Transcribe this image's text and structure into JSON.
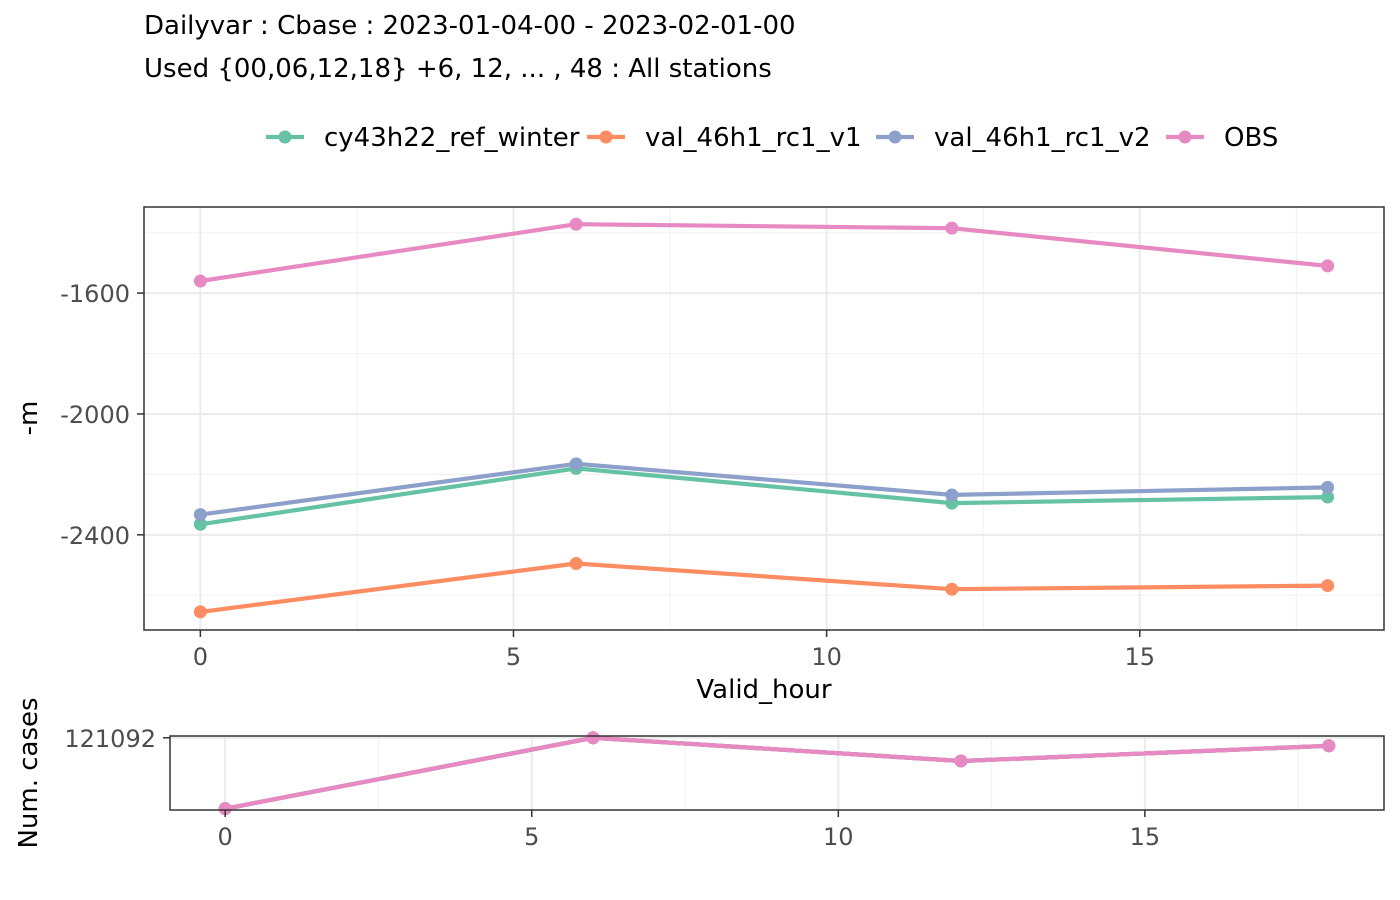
{
  "title": "Dailyvar : Cbase : 2023-01-04-00 - 2023-02-01-00",
  "subtitle": "Used {00,06,12,18} +6, 12, ... , 48 : All stations",
  "colors": {
    "cy43h22_ref_winter": "#66c2a5",
    "val_46h1_rc1_v1": "#fc8d62",
    "val_46h1_rc1_v2": "#8da0cb",
    "OBS": "#e78ac3"
  },
  "chart_data": [
    {
      "type": "line",
      "xlabel": "Valid_hour",
      "ylabel": "-m",
      "xlim": [
        -0.9,
        18.9
      ],
      "ylim": [
        -2715,
        -1315
      ],
      "x_ticks": [
        0,
        5,
        10,
        15
      ],
      "x_tick_labels": [
        "0",
        "5",
        "10",
        "15"
      ],
      "y_ticks": [
        -2400,
        -2000,
        -1600
      ],
      "y_tick_labels": [
        "-2400",
        "-2000",
        "-1600"
      ],
      "x": [
        0,
        6,
        12,
        18
      ],
      "legend_position": "top",
      "grid": true,
      "series": [
        {
          "name": "cy43h22_ref_winter",
          "values": [
            -2365,
            -2180,
            -2295,
            -2275
          ]
        },
        {
          "name": "val_46h1_rc1_v1",
          "values": [
            -2655,
            -2495,
            -2580,
            -2568
          ]
        },
        {
          "name": "val_46h1_rc1_v2",
          "values": [
            -2333,
            -2165,
            -2268,
            -2243
          ]
        },
        {
          "name": "OBS",
          "values": [
            -1560,
            -1372,
            -1385,
            -1510
          ]
        }
      ]
    },
    {
      "type": "line",
      "xlabel": "",
      "ylabel": "Num. cases",
      "xlim": [
        -0.9,
        18.9
      ],
      "ylim": [
        120930,
        121096
      ],
      "x_ticks": [
        0,
        5,
        10,
        15
      ],
      "x_tick_labels": [
        "0",
        "5",
        "10",
        "15"
      ],
      "y_ticks": [
        121092
      ],
      "y_tick_labels": [
        "121092"
      ],
      "x": [
        0,
        6,
        12,
        18
      ],
      "grid": true,
      "series": [
        {
          "name": "cy43h22_ref_winter",
          "values": [
            120933,
            121092,
            121040,
            121074
          ]
        },
        {
          "name": "val_46h1_rc1_v1",
          "values": [
            120933,
            121092,
            121040,
            121074
          ]
        },
        {
          "name": "val_46h1_rc1_v2",
          "values": [
            120933,
            121092,
            121040,
            121074
          ]
        },
        {
          "name": "OBS",
          "values": [
            120933,
            121092,
            121040,
            121074
          ]
        }
      ]
    }
  ]
}
